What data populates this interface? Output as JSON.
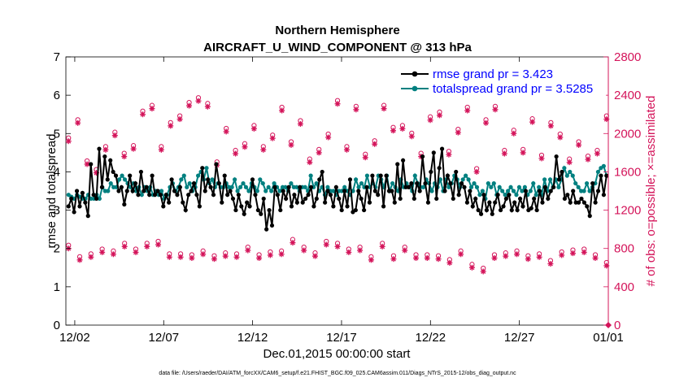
{
  "chart_data": {
    "type": "line",
    "title": "Northern Hemisphere",
    "subtitle": "AIRCRAFT_U_WIND_COMPONENT @ 313 hPa",
    "xlabel": "Dec.01,2015 00:00:00 start",
    "ylabel": "rmse and totalspread",
    "ylabel_right": "# of obs: o=possible; ×=assimilated",
    "xlim": [
      0.5,
      31.0
    ],
    "ylim": [
      0,
      7
    ],
    "ylim_right": [
      0,
      2800
    ],
    "x_ticks": [
      1,
      6,
      11,
      16,
      21,
      26,
      31
    ],
    "x_tick_labels": [
      "12/02",
      "12/07",
      "12/12",
      "12/17",
      "12/22",
      "12/27",
      "01/01"
    ],
    "y_ticks": [
      0,
      1,
      2,
      3,
      4,
      5,
      6,
      7
    ],
    "y_ticks_right": [
      0,
      400,
      800,
      1200,
      1600,
      2000,
      2400,
      2800
    ],
    "colors": {
      "rmse": "#000000",
      "spread": "#008080",
      "obs": "#d4145a",
      "legend_text": "#0000ff"
    },
    "legend": [
      {
        "name": "rmse",
        "label": "rmse grand pr = 3.423"
      },
      {
        "name": "totalspread",
        "label": "totalspread grand pr = 3.5285"
      }
    ],
    "series": [
      {
        "name": "rmse",
        "values": [
          3.1,
          3.3,
          2.95,
          3.5,
          3.1,
          3.45,
          3.2,
          2.85,
          4.2,
          3.4,
          3.3,
          4.6,
          3.6,
          4.4,
          3.8,
          4.3,
          4.0,
          3.9,
          3.5,
          3.6,
          3.15,
          3.5,
          3.9,
          3.5,
          3.7,
          3.4,
          4.0,
          3.5,
          3.6,
          3.4,
          3.9,
          3.4,
          3.5,
          3.4,
          3.1,
          3.4,
          3.2,
          3.8,
          3.5,
          3.4,
          3.6,
          3.2,
          3.0,
          3.4,
          3.5,
          3.7,
          3.4,
          3.1,
          4.1,
          3.5,
          3.8,
          3.6,
          3.4,
          4.2,
          3.7,
          3.2,
          3.9,
          3.4,
          3.5,
          3.3,
          3.0,
          3.4,
          3.1,
          2.9,
          3.2,
          3.1,
          3.8,
          3.4,
          3.0,
          2.9,
          3.3,
          2.5,
          3.0,
          2.6,
          3.6,
          3.4,
          3.0,
          3.5,
          3.3,
          3.6,
          3.1,
          3.4,
          3.2,
          3.6,
          3.2,
          3.3,
          3.4,
          3.6,
          3.1,
          3.3,
          3.8,
          4.0,
          3.2,
          3.5,
          3.4,
          3.1,
          3.6,
          3.3,
          3.0,
          3.5,
          3.1,
          3.8,
          2.95,
          3.0,
          3.5,
          3.3,
          3.0,
          3.6,
          3.2,
          3.9,
          3.5,
          3.4,
          3.9,
          3.1,
          3.9,
          3.5,
          3.5,
          3.2,
          4.2,
          3.3,
          4.3,
          3.6,
          3.6,
          3.7,
          3.3,
          3.7,
          3.5,
          4.4,
          3.7,
          3.2,
          4.0,
          4.5,
          3.3,
          4.1,
          4.6,
          3.5,
          3.9,
          3.7,
          3.3,
          4.0,
          3.4,
          3.7,
          3.6,
          3.2,
          3.5,
          3.1,
          3.3,
          3.0,
          2.9,
          3.4,
          3.0,
          3.2,
          2.9,
          3.2,
          3.4,
          3.0,
          3.1,
          3.3,
          3.4,
          3.0,
          3.2,
          3.0,
          3.3,
          3.1,
          3.5,
          3.0,
          3.05,
          3.3,
          3.0,
          3.5,
          3.2,
          3.6,
          3.3,
          3.5,
          3.6,
          4.4,
          3.8,
          4.0,
          3.3,
          3.4,
          3.2,
          3.5,
          3.2,
          3.2,
          3.3,
          3.2,
          3.1,
          2.85,
          3.7,
          3.2,
          3.5,
          3.9,
          3.4,
          3.9
        ]
      },
      {
        "name": "totalspread",
        "values": [
          3.4,
          3.35,
          3.3,
          3.4,
          3.35,
          3.3,
          3.3,
          3.4,
          3.3,
          3.3,
          3.4,
          3.3,
          3.6,
          3.5,
          3.5,
          3.7,
          3.6,
          3.6,
          3.8,
          3.9,
          3.8,
          3.7,
          3.6,
          3.7,
          3.5,
          3.6,
          3.4,
          3.6,
          3.5,
          3.6,
          3.4,
          3.5,
          3.4,
          3.5,
          3.3,
          3.4,
          3.6,
          3.7,
          3.5,
          3.6,
          3.8,
          3.9,
          3.6,
          3.7,
          3.5,
          3.6,
          3.9,
          4.0,
          3.8,
          4.1,
          3.7,
          3.8,
          3.6,
          3.7,
          3.6,
          3.6,
          3.7,
          3.6,
          3.6,
          3.8,
          3.5,
          3.6,
          3.7,
          3.6,
          3.5,
          3.7,
          3.6,
          3.5,
          3.8,
          3.7,
          3.5,
          3.6,
          3.5,
          3.7,
          3.6,
          3.5,
          3.6,
          3.6,
          3.5,
          3.7,
          3.6,
          3.6,
          3.5,
          3.6,
          3.6,
          3.5,
          3.9,
          3.6,
          3.7,
          3.5,
          3.6,
          3.4,
          3.6,
          3.5,
          3.5,
          3.4,
          3.5,
          3.5,
          3.6,
          3.5,
          3.4,
          3.5,
          3.8,
          3.6,
          3.7,
          3.6,
          3.9,
          3.6,
          3.7,
          3.6,
          3.9,
          3.8,
          3.6,
          3.9,
          3.5,
          3.7,
          3.6,
          3.5,
          3.8,
          3.6,
          3.7,
          3.6,
          3.5,
          3.9,
          3.7,
          3.6,
          3.6,
          3.8,
          3.7,
          3.5,
          3.7,
          3.6,
          3.8,
          3.5,
          3.8,
          3.6,
          3.7,
          3.9,
          3.8,
          3.6,
          3.8,
          3.9,
          3.8,
          3.6,
          3.7,
          3.6,
          3.4,
          3.5,
          3.3,
          3.7,
          3.6,
          3.7,
          3.4,
          3.6,
          3.5,
          3.4,
          3.5,
          3.6,
          3.5,
          3.4,
          3.6,
          3.5,
          3.6,
          3.4,
          3.5,
          3.7,
          3.4,
          3.6,
          3.4,
          3.8,
          3.5,
          3.8,
          3.6,
          3.8,
          3.6,
          3.8,
          4.1,
          3.9,
          4.0,
          3.9,
          3.7,
          3.6,
          3.5,
          3.5,
          3.7,
          3.5,
          3.6,
          3.7,
          4.0,
          4.1,
          4.15,
          3.9
        ]
      },
      {
        "name": "obs_possible_high",
        "values": [
          1920,
          2110,
          1680,
          1590,
          1830,
          1980,
          1760,
          1840,
          2200,
          2260,
          1830,
          2080,
          2150,
          2290,
          2340,
          2280,
          1670,
          2020,
          1790,
          1860,
          2050,
          1830,
          1950,
          2240,
          1880,
          2100,
          1700,
          1800,
          1960,
          2310,
          1830,
          2250,
          1750,
          1890,
          2260,
          2030,
          2050,
          1970,
          1760,
          2140,
          2190,
          1780,
          2010,
          2240,
          1600,
          2110,
          2250,
          1790,
          2000,
          1800,
          2120,
          1740,
          2080,
          1960,
          1700,
          1880,
          1730,
          1790,
          2150
        ]
      },
      {
        "name": "obs_possible_low",
        "values": [
          800,
          680,
          710,
          760,
          740,
          820,
          760,
          820,
          840,
          710,
          710,
          700,
          740,
          690,
          720,
          710,
          780,
          700,
          730,
          740,
          860,
          780,
          720,
          840,
          820,
          760,
          780,
          680,
          820,
          690,
          780,
          700,
          700,
          690,
          650,
          740,
          600,
          560,
          700,
          720,
          740,
          690,
          710,
          640,
          730,
          750,
          760,
          700,
          620
        ]
      }
    ]
  },
  "footer": "data file: /Users/raeder/DAI/ATM_forcXX/CAM6_setup/f.e21.FHIST_BGC.f09_025.CAM6assim.011/Diags_NTrS_2015-12/obs_diag_output.nc"
}
